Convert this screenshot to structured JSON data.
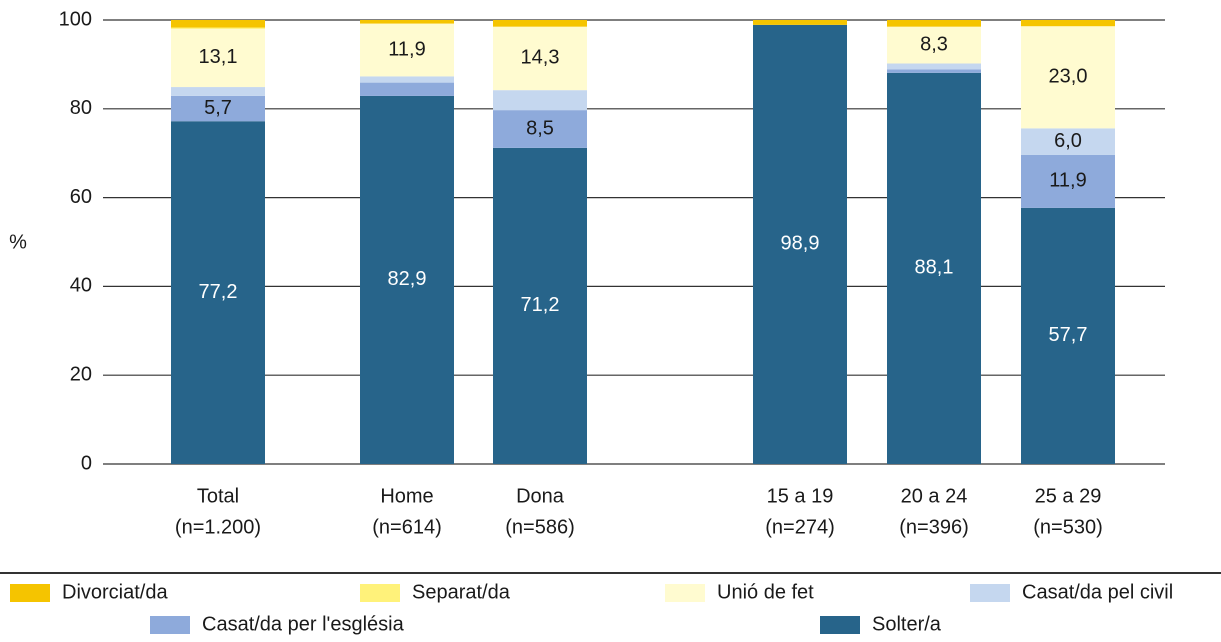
{
  "chart_data": {
    "type": "stacked_bar",
    "ylabel": "%",
    "categories": [
      [
        "Total",
        "(n=1.200)"
      ],
      [
        "Home",
        "(n=614)"
      ],
      [
        "Dona",
        "(n=586)"
      ],
      [
        "15 a 19",
        "(n=274)"
      ],
      [
        "20 a 24",
        "(n=396)"
      ],
      [
        "25 a 29",
        "(n=530)"
      ]
    ],
    "ylim": [
      0,
      100
    ],
    "yticks": [
      0,
      20,
      40,
      60,
      80,
      100
    ],
    "series": [
      {
        "name": "Divorciat/da",
        "color": "#f5c400",
        "values": [
          1.7,
          0.8,
          1.5,
          1.1,
          1.5,
          1.4
        ],
        "value_labels": [
          null,
          null,
          null,
          null,
          null,
          null
        ]
      },
      {
        "name": "Separat/da",
        "color": "#fff27a",
        "values": [
          0.3,
          0,
          0,
          0,
          0,
          0
        ],
        "value_labels": [
          null,
          null,
          null,
          null,
          null,
          null
        ]
      },
      {
        "name": "Unió de fet",
        "color": "#fffbd0",
        "values": [
          13.1,
          11.9,
          14.3,
          0,
          8.3,
          23.0
        ],
        "value_labels": [
          "13,1",
          "11,9",
          "14,3",
          null,
          "8,3",
          "23,0"
        ]
      },
      {
        "name": "Casat/da pel civil",
        "color": "#c5d7ef",
        "values": [
          2.0,
          1.4,
          4.5,
          0,
          1.3,
          6.0
        ],
        "value_labels": [
          null,
          null,
          null,
          null,
          null,
          "6,0"
        ]
      },
      {
        "name": "Casat/da per l'església",
        "color": "#8eaadb",
        "values": [
          5.7,
          3.0,
          8.5,
          0,
          0.8,
          11.9
        ],
        "value_labels": [
          "5,7",
          null,
          "8,5",
          null,
          null,
          "11,9"
        ]
      },
      {
        "name": "Solter/a",
        "color": "#27648a",
        "values": [
          77.2,
          82.9,
          71.2,
          98.9,
          88.1,
          57.7
        ],
        "value_labels": [
          "77,2",
          "82,9",
          "71,2",
          "98,9",
          "88,1",
          "57,7"
        ]
      }
    ]
  }
}
